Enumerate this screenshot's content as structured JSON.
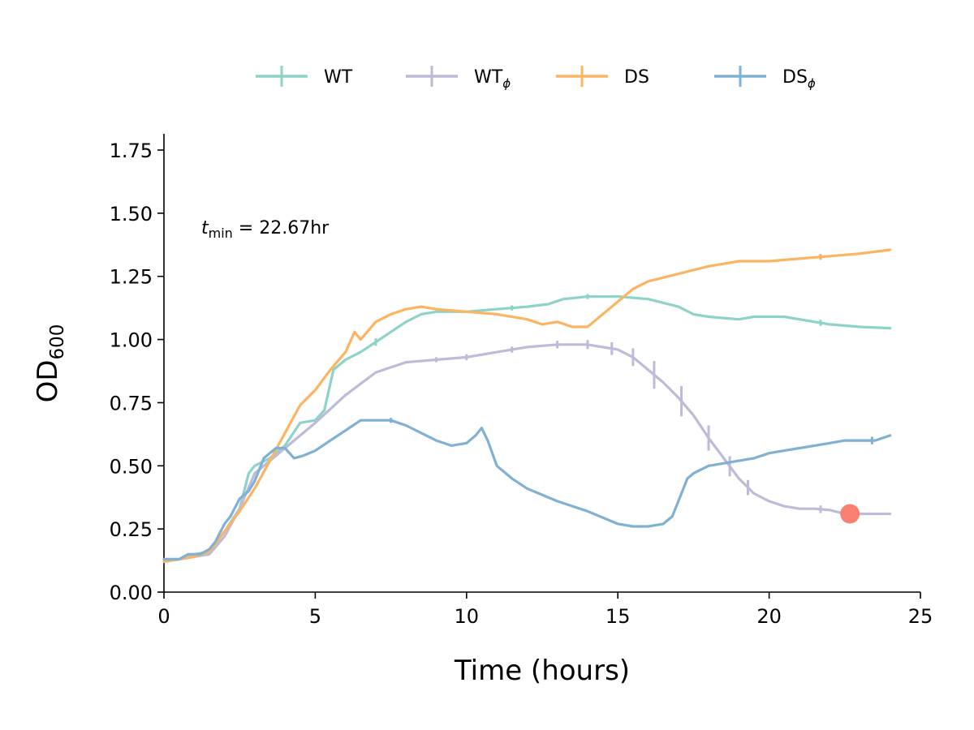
{
  "chart_data": {
    "type": "line",
    "xlabel": "Time (hours)",
    "ylabel_main": "OD",
    "ylabel_sub": "600",
    "xlim": [
      0,
      25
    ],
    "ylim": [
      0,
      1.8
    ],
    "x_ticks": [
      "0",
      "5",
      "10",
      "15",
      "20",
      "25"
    ],
    "y_ticks": [
      "0.00",
      "0.25",
      "0.50",
      "0.75",
      "1.00",
      "1.25",
      "1.50",
      "1.75"
    ],
    "grid": false,
    "legend_position": "top-center",
    "annotation": {
      "italic": "t",
      "sub": "min",
      "rest": " = 22.67hr"
    },
    "marker": {
      "x": 22.67,
      "y": 0.31,
      "color": "#fa8072"
    },
    "series": [
      {
        "name": "WT",
        "name_sub": "",
        "color": "#8dd3c7",
        "points": [
          [
            0,
            0.13
          ],
          [
            0.5,
            0.13
          ],
          [
            1,
            0.15
          ],
          [
            1.5,
            0.16
          ],
          [
            2,
            0.24
          ],
          [
            2.5,
            0.33
          ],
          [
            2.8,
            0.47
          ],
          [
            3,
            0.5
          ],
          [
            3.5,
            0.53
          ],
          [
            4,
            0.58
          ],
          [
            4.5,
            0.67
          ],
          [
            5,
            0.68
          ],
          [
            5.3,
            0.72
          ],
          [
            5.6,
            0.88
          ],
          [
            6,
            0.92
          ],
          [
            6.5,
            0.95
          ],
          [
            7,
            0.99
          ],
          [
            7.5,
            1.03
          ],
          [
            8,
            1.07
          ],
          [
            8.5,
            1.1
          ],
          [
            9,
            1.11
          ],
          [
            10,
            1.11
          ],
          [
            11,
            1.12
          ],
          [
            12,
            1.13
          ],
          [
            12.7,
            1.14
          ],
          [
            13.2,
            1.16
          ],
          [
            14,
            1.17
          ],
          [
            15,
            1.17
          ],
          [
            16,
            1.16
          ],
          [
            17,
            1.13
          ],
          [
            17.5,
            1.1
          ],
          [
            18,
            1.09
          ],
          [
            19,
            1.08
          ],
          [
            19.5,
            1.09
          ],
          [
            20.5,
            1.09
          ],
          [
            21,
            1.08
          ],
          [
            21.5,
            1.07
          ],
          [
            22,
            1.06
          ],
          [
            23,
            1.05
          ],
          [
            24,
            1.045
          ]
        ],
        "error_x": [
          7.0,
          11.5,
          14.0,
          21.7
        ],
        "error_half": [
          0.015,
          0.01,
          0.01,
          0.012
        ]
      },
      {
        "name": "WT",
        "name_sub": "ϕ",
        "color": "#bebada",
        "points": [
          [
            0,
            0.13
          ],
          [
            0.5,
            0.13
          ],
          [
            1,
            0.14
          ],
          [
            1.5,
            0.15
          ],
          [
            2,
            0.22
          ],
          [
            2.5,
            0.33
          ],
          [
            3,
            0.47
          ],
          [
            3.5,
            0.52
          ],
          [
            4,
            0.57
          ],
          [
            4.5,
            0.62
          ],
          [
            5,
            0.67
          ],
          [
            6,
            0.78
          ],
          [
            7,
            0.87
          ],
          [
            8,
            0.91
          ],
          [
            9,
            0.92
          ],
          [
            10,
            0.93
          ],
          [
            11,
            0.95
          ],
          [
            12,
            0.97
          ],
          [
            13,
            0.98
          ],
          [
            14,
            0.98
          ],
          [
            15,
            0.96
          ],
          [
            15.5,
            0.93
          ],
          [
            16,
            0.88
          ],
          [
            16.5,
            0.83
          ],
          [
            17,
            0.77
          ],
          [
            17.5,
            0.7
          ],
          [
            18,
            0.61
          ],
          [
            18.5,
            0.53
          ],
          [
            19,
            0.45
          ],
          [
            19.5,
            0.39
          ],
          [
            20,
            0.36
          ],
          [
            20.5,
            0.34
          ],
          [
            21,
            0.33
          ],
          [
            21.5,
            0.33
          ],
          [
            22,
            0.325
          ],
          [
            22.5,
            0.31
          ],
          [
            23,
            0.31
          ],
          [
            24,
            0.31
          ]
        ],
        "error_x": [
          9.0,
          10.0,
          11.5,
          13.0,
          14.0,
          14.8,
          15.5,
          16.2,
          17.1,
          18.0,
          18.7,
          19.3,
          21.7
        ],
        "error_half": [
          0.01,
          0.012,
          0.012,
          0.015,
          0.018,
          0.025,
          0.035,
          0.055,
          0.06,
          0.05,
          0.04,
          0.03,
          0.015
        ]
      },
      {
        "name": "DS",
        "name_sub": "",
        "color": "#fdb462",
        "points": [
          [
            0,
            0.12
          ],
          [
            0.5,
            0.13
          ],
          [
            1,
            0.14
          ],
          [
            1.5,
            0.16
          ],
          [
            2,
            0.24
          ],
          [
            2.5,
            0.32
          ],
          [
            3,
            0.41
          ],
          [
            3.5,
            0.52
          ],
          [
            4,
            0.63
          ],
          [
            4.5,
            0.74
          ],
          [
            5,
            0.8
          ],
          [
            5.5,
            0.88
          ],
          [
            6,
            0.95
          ],
          [
            6.3,
            1.03
          ],
          [
            6.5,
            1.0
          ],
          [
            7,
            1.07
          ],
          [
            7.5,
            1.1
          ],
          [
            8,
            1.12
          ],
          [
            8.5,
            1.13
          ],
          [
            9,
            1.12
          ],
          [
            10,
            1.11
          ],
          [
            11,
            1.1
          ],
          [
            12,
            1.08
          ],
          [
            12.5,
            1.06
          ],
          [
            13,
            1.07
          ],
          [
            13.5,
            1.05
          ],
          [
            14,
            1.05
          ],
          [
            14.5,
            1.1
          ],
          [
            15,
            1.15
          ],
          [
            15.5,
            1.2
          ],
          [
            16,
            1.23
          ],
          [
            17,
            1.26
          ],
          [
            18,
            1.29
          ],
          [
            19,
            1.31
          ],
          [
            20,
            1.31
          ],
          [
            21,
            1.32
          ],
          [
            22,
            1.33
          ],
          [
            23,
            1.34
          ],
          [
            24,
            1.355
          ]
        ],
        "error_x": [
          21.7
        ],
        "error_half": [
          0.012
        ]
      },
      {
        "name": "DS",
        "name_sub": "ϕ",
        "color": "#80b1d3",
        "points": [
          [
            0,
            0.13
          ],
          [
            0.5,
            0.13
          ],
          [
            0.8,
            0.15
          ],
          [
            1.2,
            0.15
          ],
          [
            1.5,
            0.17
          ],
          [
            1.7,
            0.2
          ],
          [
            2,
            0.27
          ],
          [
            2.2,
            0.3
          ],
          [
            2.5,
            0.37
          ],
          [
            2.8,
            0.4
          ],
          [
            3,
            0.44
          ],
          [
            3.3,
            0.53
          ],
          [
            3.7,
            0.57
          ],
          [
            4,
            0.57
          ],
          [
            4.3,
            0.53
          ],
          [
            4.6,
            0.54
          ],
          [
            5,
            0.56
          ],
          [
            5.5,
            0.6
          ],
          [
            6,
            0.64
          ],
          [
            6.5,
            0.68
          ],
          [
            7,
            0.68
          ],
          [
            7.5,
            0.68
          ],
          [
            8,
            0.66
          ],
          [
            8.5,
            0.63
          ],
          [
            9,
            0.6
          ],
          [
            9.5,
            0.58
          ],
          [
            10,
            0.59
          ],
          [
            10.3,
            0.62
          ],
          [
            10.5,
            0.65
          ],
          [
            10.7,
            0.6
          ],
          [
            11,
            0.5
          ],
          [
            11.5,
            0.45
          ],
          [
            12,
            0.41
          ],
          [
            13,
            0.36
          ],
          [
            14,
            0.32
          ],
          [
            15,
            0.27
          ],
          [
            15.5,
            0.26
          ],
          [
            16,
            0.26
          ],
          [
            16.5,
            0.27
          ],
          [
            16.8,
            0.3
          ],
          [
            17,
            0.36
          ],
          [
            17.3,
            0.45
          ],
          [
            17.5,
            0.47
          ],
          [
            18,
            0.5
          ],
          [
            18.5,
            0.51
          ],
          [
            19,
            0.52
          ],
          [
            19.5,
            0.53
          ],
          [
            20,
            0.55
          ],
          [
            20.5,
            0.56
          ],
          [
            21,
            0.57
          ],
          [
            21.5,
            0.58
          ],
          [
            22,
            0.59
          ],
          [
            22.5,
            0.6
          ],
          [
            23,
            0.6
          ],
          [
            23.5,
            0.6
          ],
          [
            24,
            0.62
          ]
        ],
        "error_x": [
          7.5,
          23.4
        ],
        "error_half": [
          0.01,
          0.015
        ]
      }
    ]
  }
}
